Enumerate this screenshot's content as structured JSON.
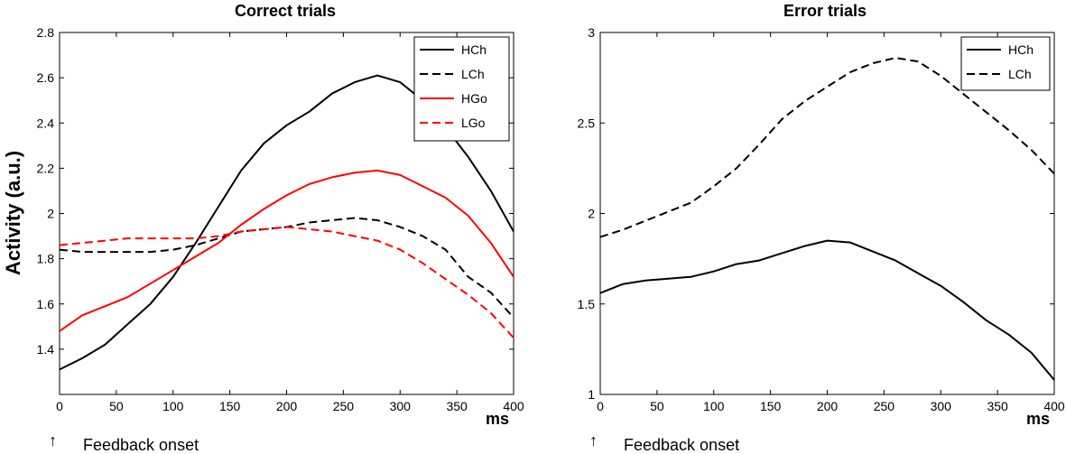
{
  "ylabel": "Activity (a.u.)",
  "colors": {
    "black": "#000000",
    "red": "#ff0000"
  },
  "onset_arrow": "↑",
  "chart_data": [
    {
      "type": "line",
      "title": "Correct trials",
      "xlabel": "ms",
      "xlim": [
        0,
        400
      ],
      "ylim": [
        1.2,
        2.8
      ],
      "xticks": [
        0,
        50,
        100,
        150,
        200,
        250,
        300,
        350,
        400
      ],
      "yticks": [
        1.4,
        1.6,
        1.8,
        2,
        2.2,
        2.4,
        2.6,
        2.8
      ],
      "x_annotation": "Feedback onset",
      "legend_position": "top-right",
      "series": [
        {
          "name": "HCh",
          "color": "#000000",
          "dash": "solid",
          "x": [
            0,
            20,
            40,
            60,
            80,
            100,
            120,
            140,
            160,
            180,
            200,
            220,
            240,
            260,
            280,
            300,
            320,
            340,
            360,
            380,
            400
          ],
          "y": [
            1.31,
            1.36,
            1.42,
            1.51,
            1.6,
            1.72,
            1.87,
            2.03,
            2.19,
            2.31,
            2.39,
            2.45,
            2.53,
            2.58,
            2.61,
            2.58,
            2.5,
            2.38,
            2.25,
            2.1,
            1.92
          ]
        },
        {
          "name": "LCh",
          "color": "#000000",
          "dash": "dashed",
          "x": [
            0,
            20,
            40,
            60,
            80,
            100,
            120,
            140,
            160,
            180,
            200,
            220,
            240,
            260,
            280,
            300,
            320,
            340,
            360,
            380,
            400
          ],
          "y": [
            1.84,
            1.83,
            1.83,
            1.83,
            1.83,
            1.84,
            1.86,
            1.89,
            1.92,
            1.93,
            1.94,
            1.96,
            1.97,
            1.98,
            1.97,
            1.94,
            1.9,
            1.84,
            1.72,
            1.65,
            1.54
          ]
        },
        {
          "name": "HGo",
          "color": "#ff0000",
          "dash": "solid",
          "x": [
            0,
            20,
            40,
            60,
            80,
            100,
            120,
            140,
            160,
            180,
            200,
            220,
            240,
            260,
            280,
            300,
            320,
            340,
            360,
            380,
            400
          ],
          "y": [
            1.48,
            1.55,
            1.59,
            1.63,
            1.69,
            1.75,
            1.81,
            1.87,
            1.95,
            2.02,
            2.08,
            2.13,
            2.16,
            2.18,
            2.19,
            2.17,
            2.12,
            2.07,
            1.99,
            1.87,
            1.72
          ]
        },
        {
          "name": "LGo",
          "color": "#ff0000",
          "dash": "dashed",
          "x": [
            0,
            20,
            40,
            60,
            80,
            100,
            120,
            140,
            160,
            180,
            200,
            220,
            240,
            260,
            280,
            300,
            320,
            340,
            360,
            380,
            400
          ],
          "y": [
            1.86,
            1.87,
            1.88,
            1.89,
            1.89,
            1.89,
            1.89,
            1.9,
            1.92,
            1.93,
            1.94,
            1.93,
            1.92,
            1.9,
            1.88,
            1.84,
            1.78,
            1.71,
            1.64,
            1.56,
            1.45
          ]
        }
      ]
    },
    {
      "type": "line",
      "title": "Error trials",
      "xlabel": "ms",
      "xlim": [
        0,
        400
      ],
      "ylim": [
        1,
        3
      ],
      "xticks": [
        0,
        50,
        100,
        150,
        200,
        250,
        300,
        350,
        400
      ],
      "yticks": [
        1,
        1.5,
        2,
        2.5,
        3
      ],
      "x_annotation": "Feedback onset",
      "legend_position": "top-right",
      "series": [
        {
          "name": "HCh",
          "color": "#000000",
          "dash": "solid",
          "x": [
            0,
            20,
            40,
            60,
            80,
            100,
            120,
            140,
            160,
            180,
            200,
            220,
            240,
            260,
            280,
            300,
            320,
            340,
            360,
            380,
            400
          ],
          "y": [
            1.56,
            1.61,
            1.63,
            1.64,
            1.65,
            1.68,
            1.72,
            1.74,
            1.78,
            1.82,
            1.85,
            1.84,
            1.79,
            1.74,
            1.67,
            1.6,
            1.51,
            1.41,
            1.33,
            1.23,
            1.08
          ]
        },
        {
          "name": "LCh",
          "color": "#000000",
          "dash": "dashed",
          "x": [
            0,
            20,
            40,
            60,
            80,
            100,
            120,
            140,
            160,
            180,
            200,
            220,
            240,
            260,
            280,
            300,
            320,
            340,
            360,
            380,
            400
          ],
          "y": [
            1.87,
            1.91,
            1.96,
            2.01,
            2.06,
            2.15,
            2.25,
            2.38,
            2.52,
            2.62,
            2.7,
            2.78,
            2.83,
            2.86,
            2.84,
            2.76,
            2.66,
            2.56,
            2.46,
            2.35,
            2.22
          ]
        }
      ]
    }
  ]
}
